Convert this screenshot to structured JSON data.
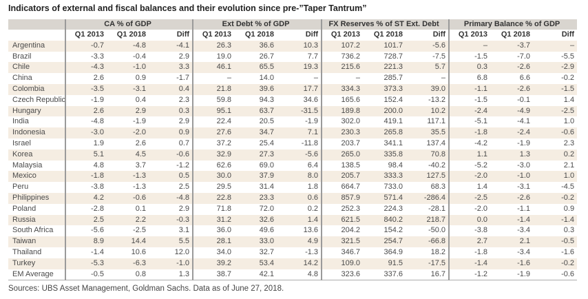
{
  "title": "Indicators of external and fiscal balances and their evolution since pre-”Taper Tantrum”",
  "groups": [
    "CA % of GDP",
    "Ext Debt % of GDP",
    "FX Reserves % of ST Ext. Debt",
    "Primary Balance % of GDP"
  ],
  "subheaders": [
    "Q1 2013",
    "Q1 2018",
    "Diff"
  ],
  "rows": [
    [
      "Argentina",
      "-0.7",
      "-4.8",
      "-4.1",
      "26.3",
      "36.6",
      "10.3",
      "107.2",
      "101.7",
      "-5.6",
      "–",
      "-3.7",
      "–"
    ],
    [
      "Brazil",
      "-3.3",
      "-0.4",
      "2.9",
      "19.0",
      "26.7",
      "7.7",
      "736.2",
      "728.7",
      "-7.5",
      "-1.5",
      "-7.0",
      "-5.5"
    ],
    [
      "Chile",
      "-4.3",
      "-1.0",
      "3.3",
      "46.1",
      "65.5",
      "19.3",
      "215.6",
      "221.3",
      "5.7",
      "0.3",
      "-2.6",
      "-2.9"
    ],
    [
      "China",
      "2.6",
      "0.9",
      "-1.7",
      "–",
      "14.0",
      "–",
      "–",
      "285.7",
      "–",
      "6.8",
      "6.6",
      "-0.2"
    ],
    [
      "Colombia",
      "-3.5",
      "-3.1",
      "0.4",
      "21.8",
      "39.6",
      "17.7",
      "334.3",
      "373.3",
      "39.0",
      "-1.1",
      "-2.6",
      "-1.5"
    ],
    [
      "Czech Republic",
      "-1.9",
      "0.4",
      "2.3",
      "59.8",
      "94.3",
      "34.6",
      "165.6",
      "152.4",
      "-13.2",
      "-1.5",
      "-0.1",
      "1.4"
    ],
    [
      "Hungary",
      "2.6",
      "2.9",
      "0.3",
      "95.1",
      "63.7",
      "-31.5",
      "189.8",
      "200.0",
      "10.2",
      "-2.4",
      "-4.9",
      "-2.5"
    ],
    [
      "India",
      "-4.8",
      "-1.9",
      "2.9",
      "22.4",
      "20.5",
      "-1.9",
      "302.0",
      "419.1",
      "117.1",
      "-5.1",
      "-4.1",
      "1.0"
    ],
    [
      "Indonesia",
      "-3.0",
      "-2.0",
      "0.9",
      "27.6",
      "34.7",
      "7.1",
      "230.3",
      "265.8",
      "35.5",
      "-1.8",
      "-2.4",
      "-0.6"
    ],
    [
      "Israel",
      "1.9",
      "2.6",
      "0.7",
      "37.2",
      "25.4",
      "-11.8",
      "203.7",
      "341.1",
      "137.4",
      "-4.2",
      "-1.9",
      "2.3"
    ],
    [
      "Korea",
      "5.1",
      "4.5",
      "-0.6",
      "32.9",
      "27.3",
      "-5.6",
      "265.0",
      "335.8",
      "70.8",
      "1.1",
      "1.3",
      "0.2"
    ],
    [
      "Malaysia",
      "4.8",
      "3.7",
      "-1.2",
      "62.6",
      "69.0",
      "6.4",
      "138.5",
      "98.4",
      "-40.2",
      "-5.2",
      "-3.0",
      "2.1"
    ],
    [
      "Mexico",
      "-1.8",
      "-1.3",
      "0.5",
      "30.0",
      "37.9",
      "8.0",
      "205.7",
      "333.3",
      "127.5",
      "-2.0",
      "-1.0",
      "1.0"
    ],
    [
      "Peru",
      "-3.8",
      "-1.3",
      "2.5",
      "29.5",
      "31.4",
      "1.8",
      "664.7",
      "733.0",
      "68.3",
      "1.4",
      "-3.1",
      "-4.5"
    ],
    [
      "Philippines",
      "4.2",
      "-0.6",
      "-4.8",
      "22.8",
      "23.3",
      "0.6",
      "857.9",
      "571.4",
      "-286.4",
      "-2.5",
      "-2.6",
      "-0.2"
    ],
    [
      "Poland",
      "-2.8",
      "0.1",
      "2.9",
      "71.8",
      "72.0",
      "0.2",
      "252.3",
      "224.3",
      "-28.1",
      "-2.0",
      "-1.1",
      "0.9"
    ],
    [
      "Russia",
      "2.5",
      "2.2",
      "-0.3",
      "31.2",
      "32.6",
      "1.4",
      "621.5",
      "840.2",
      "218.7",
      "0.0",
      "-1.4",
      "-1.4"
    ],
    [
      "South Africa",
      "-5.6",
      "-2.5",
      "3.1",
      "36.0",
      "49.6",
      "13.6",
      "204.2",
      "154.2",
      "-50.0",
      "-3.8",
      "-3.4",
      "0.3"
    ],
    [
      "Taiwan",
      "8.9",
      "14.4",
      "5.5",
      "28.1",
      "33.0",
      "4.9",
      "321.5",
      "254.7",
      "-66.8",
      "2.7",
      "2.1",
      "-0.5"
    ],
    [
      "Thailand",
      "-1.4",
      "10.6",
      "12.0",
      "34.0",
      "32.7",
      "-1.3",
      "346.7",
      "364.9",
      "18.2",
      "-1.8",
      "-3.4",
      "-1.6"
    ],
    [
      "Turkey",
      "-5.3",
      "-6.3",
      "-1.0",
      "39.2",
      "53.4",
      "14.2",
      "109.0",
      "91.5",
      "-17.5",
      "-1.4",
      "-1.6",
      "-0.2"
    ],
    [
      "EM Average",
      "-0.5",
      "0.8",
      "1.3",
      "38.7",
      "42.1",
      "4.8",
      "323.6",
      "337.6",
      "16.7",
      "-1.2",
      "-1.9",
      "-0.6"
    ]
  ],
  "source": "Sources: UBS Asset Management, Goldman Sachs. Data as of June 27, 2018.",
  "colors": {
    "header_bg": "#d9d5cf",
    "stripe_bg": "#f5ede2",
    "divider": "#9a9a9a"
  }
}
